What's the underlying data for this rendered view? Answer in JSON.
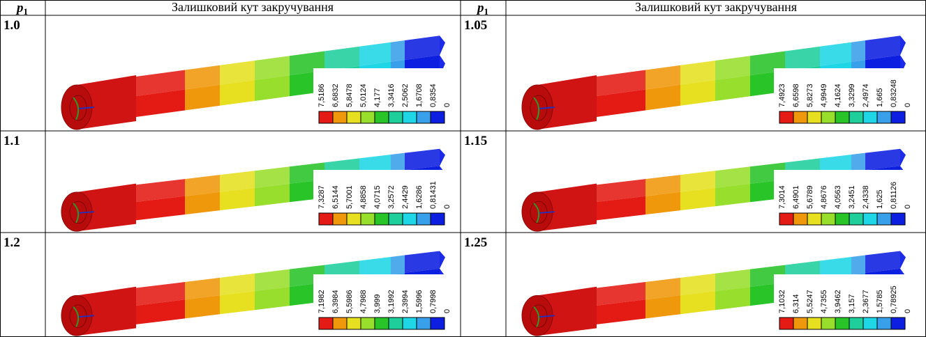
{
  "header": [
    {
      "symbol": "p",
      "subscript": "1"
    },
    "Залишковий кут  закручування",
    {
      "symbol": "p",
      "subscript": "1"
    },
    "Залишковий кут  закручування"
  ],
  "rows": [
    {
      "cells": [
        {
          "p": "1.0",
          "legend": [
            "7,5186",
            "6,6832",
            "5,8478",
            "5,0124",
            "4,177",
            "3,3416",
            "2,5062",
            "1,6708",
            "0,8354",
            "0"
          ]
        },
        {
          "p": "1.05",
          "legend": [
            "7,4923",
            "6,6598",
            "5,8273",
            "4,9949",
            "4,1624",
            "3,3299",
            "2,4974",
            "1,665",
            "0,83248",
            "0"
          ]
        }
      ]
    },
    {
      "cells": [
        {
          "p": "1.1",
          "legend": [
            "7,3287",
            "6,5144",
            "5,7001",
            "4,8858",
            "4,0715",
            "3,2572",
            "2,4429",
            "1,6286",
            "0,81431",
            "0"
          ]
        },
        {
          "p": "1.15",
          "legend": [
            "7,3014",
            "6,4901",
            "5,6789",
            "4,8676",
            "4,0563",
            "3,2451",
            "2,4338",
            "1,625",
            "0,81126",
            "0"
          ]
        }
      ]
    },
    {
      "cells": [
        {
          "p": "1.2",
          "legend": [
            "7,1982",
            "6,3984",
            "5,5986",
            "4,7988",
            "3,999",
            "3,1992",
            "2,3994",
            "1,5996",
            "0,7998",
            "0"
          ]
        },
        {
          "p": "1.25",
          "legend": [
            "7,1032",
            "6,314",
            "5,5247",
            "4,7355",
            "3,9462",
            "3,157",
            "2,3677",
            "1,5785",
            "0,78925",
            "0"
          ]
        }
      ]
    }
  ]
}
